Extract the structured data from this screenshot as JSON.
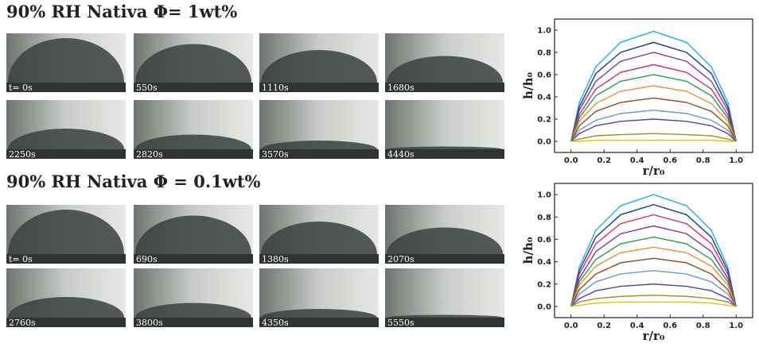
{
  "panels": [
    {
      "title": "90% RH Nativa Φ= 1wt%",
      "frames": [
        "t= 0s",
        "550s",
        "1110s",
        "1680s",
        "2250s",
        "2820s",
        "3570s",
        "4440s"
      ]
    },
    {
      "title": "90% RH Nativa Φ = 0.1wt%",
      "frames": [
        "t= 0s",
        "690s",
        "1380s",
        "2070s",
        "2760s",
        "3800s",
        "4350s",
        "5550s"
      ]
    }
  ],
  "chart_data": [
    {
      "type": "line",
      "xlabel": "r/r₀",
      "ylabel": "h/h₀",
      "x": [
        0,
        0.05,
        0.15,
        0.3,
        0.5,
        0.7,
        0.85,
        0.95,
        1.0
      ],
      "xlim": [
        -0.1,
        1.1
      ],
      "ylim": [
        -0.1,
        1.1
      ],
      "xticks": [
        {
          "value": 0,
          "label": "0.0"
        },
        {
          "value": 0.2,
          "label": "0.2"
        },
        {
          "value": 0.4,
          "label": "0.4"
        },
        {
          "value": 0.6,
          "label": "0.6"
        },
        {
          "value": 0.8,
          "label": "0.8"
        },
        {
          "value": 1,
          "label": "1.0"
        }
      ],
      "yticks": [
        {
          "value": 0,
          "label": "0.0"
        },
        {
          "value": 0.2,
          "label": "0.2"
        },
        {
          "value": 0.4,
          "label": "0.4"
        },
        {
          "value": 0.6,
          "label": "0.6"
        },
        {
          "value": 0.8,
          "label": "0.8"
        },
        {
          "value": 1,
          "label": "1.0"
        }
      ],
      "series": [
        {
          "color": "#22b0e0",
          "values": [
            0,
            0.35,
            0.67,
            0.89,
            0.99,
            0.89,
            0.67,
            0.35,
            0
          ]
        },
        {
          "color": "#1a3a8a",
          "values": [
            0,
            0.31,
            0.61,
            0.8,
            0.89,
            0.8,
            0.61,
            0.31,
            0
          ]
        },
        {
          "color": "#7a3aa0",
          "values": [
            0,
            0.28,
            0.54,
            0.72,
            0.8,
            0.72,
            0.54,
            0.28,
            0
          ]
        },
        {
          "color": "#d0306a",
          "values": [
            0,
            0.24,
            0.47,
            0.62,
            0.69,
            0.62,
            0.47,
            0.24,
            0
          ]
        },
        {
          "color": "#2a9a50",
          "values": [
            0,
            0.21,
            0.41,
            0.54,
            0.6,
            0.54,
            0.41,
            0.21,
            0
          ]
        },
        {
          "color": "#f09030",
          "values": [
            0,
            0.18,
            0.34,
            0.45,
            0.5,
            0.45,
            0.34,
            0.18,
            0
          ]
        },
        {
          "color": "#8a4a20",
          "values": [
            0,
            0.14,
            0.27,
            0.35,
            0.39,
            0.35,
            0.27,
            0.14,
            0
          ]
        },
        {
          "color": "#6a9ad0",
          "values": [
            0,
            0.1,
            0.19,
            0.25,
            0.28,
            0.25,
            0.19,
            0.1,
            0
          ]
        },
        {
          "color": "#5a40a0",
          "values": [
            0,
            0.07,
            0.14,
            0.18,
            0.2,
            0.18,
            0.14,
            0.07,
            0
          ]
        },
        {
          "color": "#a09020",
          "values": [
            0,
            0.02,
            0.05,
            0.06,
            0.07,
            0.06,
            0.05,
            0.02,
            0
          ]
        },
        {
          "color": "#e0c020",
          "values": [
            0,
            0,
            0.01,
            0.01,
            0.01,
            0.01,
            0.01,
            0,
            0
          ]
        }
      ]
    },
    {
      "type": "line",
      "xlabel": "r/r₀",
      "ylabel": "h/h₀",
      "x": [
        0,
        0.05,
        0.15,
        0.3,
        0.5,
        0.7,
        0.85,
        0.95,
        1.0
      ],
      "xlim": [
        -0.1,
        1.1
      ],
      "ylim": [
        -0.1,
        1.1
      ],
      "xticks": [
        {
          "value": 0,
          "label": "0.0"
        },
        {
          "value": 0.2,
          "label": "0.2"
        },
        {
          "value": 0.4,
          "label": "0.4"
        },
        {
          "value": 0.6,
          "label": "0.6"
        },
        {
          "value": 0.8,
          "label": "0.8"
        },
        {
          "value": 1,
          "label": "1.0"
        }
      ],
      "yticks": [
        {
          "value": 0,
          "label": "0.0"
        },
        {
          "value": 0.2,
          "label": "0.2"
        },
        {
          "value": 0.4,
          "label": "0.4"
        },
        {
          "value": 0.6,
          "label": "0.6"
        },
        {
          "value": 0.8,
          "label": "0.8"
        },
        {
          "value": 1,
          "label": "1.0"
        }
      ],
      "series": [
        {
          "color": "#22b0e0",
          "values": [
            0,
            0.35,
            0.68,
            0.9,
            1.0,
            0.9,
            0.68,
            0.35,
            0
          ]
        },
        {
          "color": "#1a3a8a",
          "values": [
            0,
            0.32,
            0.62,
            0.82,
            0.91,
            0.82,
            0.62,
            0.32,
            0
          ]
        },
        {
          "color": "#d0306a",
          "values": [
            0,
            0.29,
            0.56,
            0.74,
            0.82,
            0.74,
            0.56,
            0.29,
            0
          ]
        },
        {
          "color": "#7a3aa0",
          "values": [
            0,
            0.25,
            0.49,
            0.65,
            0.72,
            0.65,
            0.49,
            0.25,
            0
          ]
        },
        {
          "color": "#2a9a50",
          "values": [
            0,
            0.22,
            0.42,
            0.56,
            0.62,
            0.56,
            0.42,
            0.22,
            0
          ]
        },
        {
          "color": "#f09030",
          "values": [
            0,
            0.19,
            0.36,
            0.48,
            0.53,
            0.48,
            0.36,
            0.19,
            0
          ]
        },
        {
          "color": "#8a4a20",
          "values": [
            0,
            0.15,
            0.29,
            0.39,
            0.43,
            0.39,
            0.29,
            0.15,
            0
          ]
        },
        {
          "color": "#6a9ad0",
          "values": [
            0,
            0.11,
            0.22,
            0.29,
            0.32,
            0.29,
            0.22,
            0.11,
            0
          ]
        },
        {
          "color": "#5a40a0",
          "values": [
            0,
            0.07,
            0.14,
            0.18,
            0.2,
            0.18,
            0.14,
            0.07,
            0
          ]
        },
        {
          "color": "#a09020",
          "values": [
            0,
            0.04,
            0.07,
            0.09,
            0.1,
            0.09,
            0.07,
            0.04,
            0
          ]
        },
        {
          "color": "#e0c020",
          "values": [
            0,
            0.01,
            0.03,
            0.04,
            0.04,
            0.04,
            0.03,
            0.01,
            0
          ]
        }
      ]
    }
  ]
}
